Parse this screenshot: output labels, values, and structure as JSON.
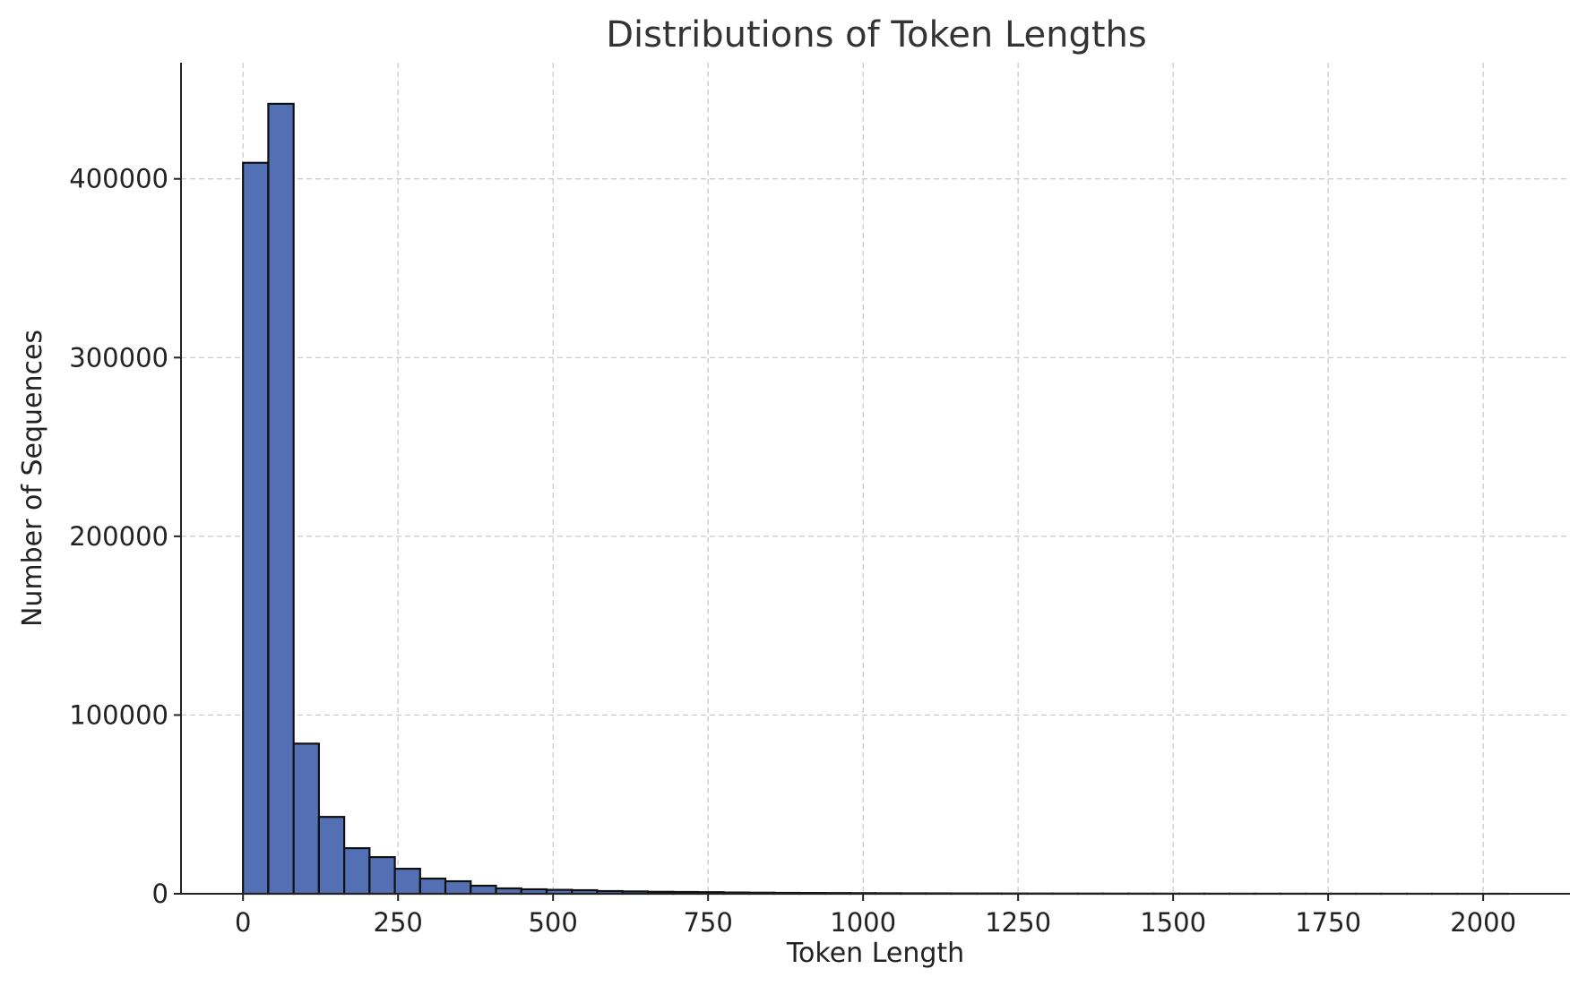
{
  "chart_data": {
    "type": "bar",
    "title": "Distributions of Token Lengths",
    "xlabel": "Token Length",
    "ylabel": "Number of Sequences",
    "xlim": [
      -100,
      2140
    ],
    "ylim": [
      0,
      465000
    ],
    "xticks": [
      0,
      250,
      500,
      750,
      1000,
      1250,
      1500,
      1750,
      2000
    ],
    "yticks": [
      0,
      100000,
      200000,
      300000,
      400000
    ],
    "grid": true,
    "bar_color": "#5470b4",
    "bin_width": 40.8,
    "bin_start": 0,
    "values": [
      409000,
      442000,
      84000,
      43000,
      25500,
      20500,
      14000,
      8500,
      7000,
      4500,
      3000,
      2500,
      2200,
      2000,
      1500,
      1300,
      1100,
      1000,
      900,
      700,
      600,
      500,
      450,
      400,
      350,
      300,
      250,
      230,
      200,
      180,
      160,
      140,
      120,
      110,
      100,
      90,
      80,
      70,
      60,
      55,
      50,
      45,
      40,
      35,
      30,
      25,
      20,
      15,
      10,
      8
    ]
  }
}
